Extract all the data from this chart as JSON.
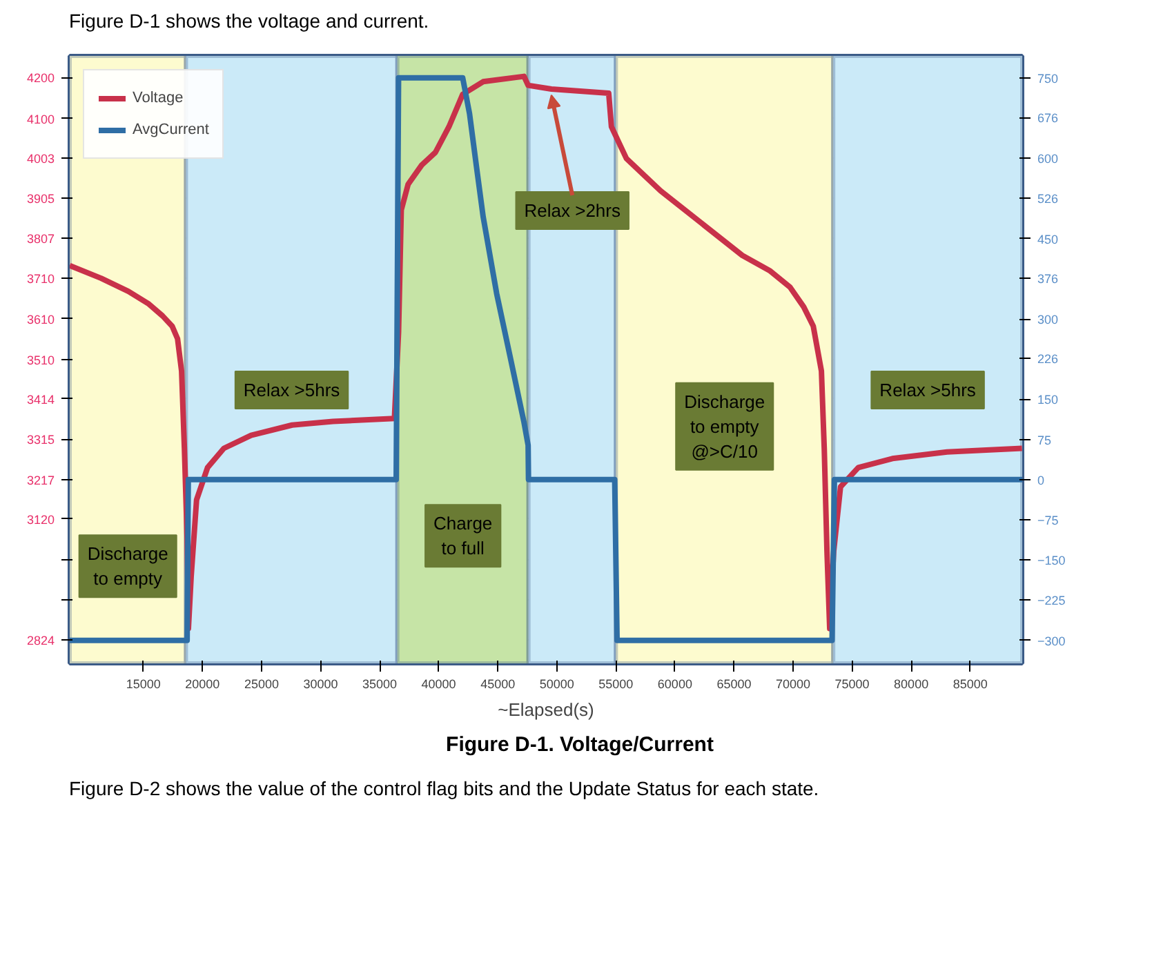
{
  "chart_data": {
    "type": "line",
    "title": "Figure D-1. Voltage/Current",
    "subtitle": "Figure D-1 shows the voltage and current.",
    "xlabel": "~Elapsed(s)",
    "xlim": [
      8760,
      89400
    ],
    "xticks": [
      15000,
      20000,
      25000,
      30000,
      35000,
      40000,
      45000,
      50000,
      55000,
      60000,
      65000,
      70000,
      75000,
      80000,
      85000
    ],
    "ylim": [
      2767,
      4253
    ],
    "yticks": [
      4200,
      4100,
      4003,
      3905,
      3807,
      3710,
      3610,
      3510,
      3414,
      3315,
      3217,
      3120,
      {
        "value": 3021,
        "label": null
      },
      {
        "value": 2922,
        "label": null
      },
      2824
    ],
    "y2lim": [
      -343,
      791
    ],
    "y2ticks": [
      750,
      676,
      600,
      526,
      450,
      376,
      300,
      226,
      150,
      75,
      0,
      -75,
      -150,
      -225,
      -300
    ],
    "grid": true,
    "legend": "top left",
    "line_style": "solid",
    "series": [
      {
        "name": "Voltage",
        "color": "#c8314a",
        "x": [
          8760,
          11420,
          13730,
          15460,
          16620,
          17430,
          17890,
          18230,
          18470,
          18700,
          18810,
          19040,
          19500,
          20430,
          21810,
          24120,
          27590,
          31050,
          36250,
          36600,
          36830,
          37410,
          38560,
          39720,
          40870,
          42030,
          43760,
          47220,
          47570,
          49540,
          54390,
          54620,
          55890,
          58780,
          62240,
          65700,
          68010,
          69750,
          70900,
          71710,
          72400,
          72640,
          72870,
          73100,
          73440,
          74020,
          75520,
          78410,
          83030,
          89380
        ],
        "values": [
          3740,
          3709,
          3677,
          3646,
          3617,
          3592,
          3561,
          3482,
          3293,
          3073,
          2852,
          2978,
          3167,
          3246,
          3293,
          3325,
          3350,
          3359,
          3366,
          3576,
          3876,
          3939,
          3986,
          4017,
          4080,
          4159,
          4190,
          4203,
          4181,
          4172,
          4162,
          4080,
          4002,
          3923,
          3844,
          3765,
          3728,
          3687,
          3639,
          3592,
          3482,
          3293,
          3041,
          2852,
          3041,
          3199,
          3246,
          3268,
          3284,
          3293
        ]
      },
      {
        "name": "AvgCurrent",
        "color": "#2f6ea5",
        "axis": "y2",
        "x": [
          8760,
          18700,
          18800,
          36400,
          36600,
          42030,
          42610,
          43180,
          43760,
          44910,
          46070,
          47220,
          47570,
          47600,
          54900,
          55100,
          73300,
          73500,
          89400
        ],
        "values": [
          -300,
          -300,
          0,
          0,
          750,
          750,
          683,
          587,
          491,
          347,
          227,
          107,
          64,
          0,
          0,
          -300,
          -300,
          0,
          0
        ]
      }
    ],
    "bands": [
      {
        "axis": "x",
        "from": 8760,
        "to": 18600,
        "color": "#fdfbcf",
        "label": "Discharge\nto empty"
      },
      {
        "axis": "x",
        "from": 18600,
        "to": 36500,
        "color": "#cbeaf8",
        "label": "Relax >5hrs"
      },
      {
        "axis": "x",
        "from": 36500,
        "to": 47600,
        "color": "#c6e4a6",
        "label": "Charge\nto full"
      },
      {
        "axis": "x",
        "from": 47600,
        "to": 55000,
        "color": "#cbeaf8"
      },
      {
        "axis": "x",
        "from": 55000,
        "to": 73400,
        "color": "#fdfbcf",
        "label": "Discharge\nto empty\n@>C/10"
      },
      {
        "axis": "x",
        "from": 73400,
        "to": 89400,
        "color": "#cbeaf8",
        "label": "Relax >5hrs"
      }
    ],
    "annotations": [
      {
        "text": "Relax >2hrs",
        "x": 49540,
        "y": 4172
      },
      "Figure D-2 shows the value of the control flag bits and the Update Status for each state."
    ]
  }
}
